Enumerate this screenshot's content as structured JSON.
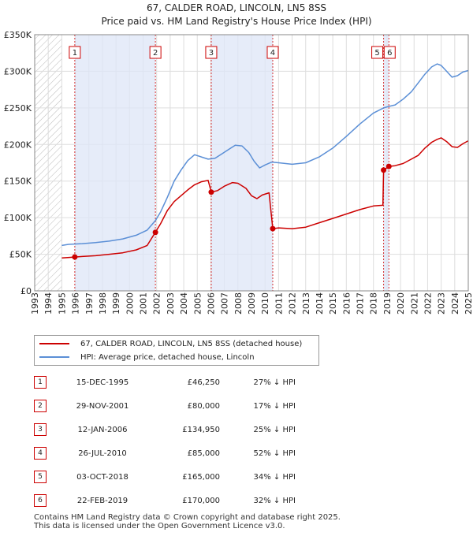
{
  "title_line1": "67, CALDER ROAD, LINCOLN, LN5 8SS",
  "title_line2": "Price paid vs. HM Land Registry's House Price Index (HPI)",
  "legend": {
    "property_label": "67, CALDER ROAD, LINCOLN, LN5 8SS (detached house)",
    "hpi_label": "HPI: Average price, detached house, Lincoln"
  },
  "colors": {
    "property": "#cc0000",
    "hpi": "#5b8fd6",
    "shade": "#dde6f7",
    "grid": "#dddddd",
    "hatch": "#bbbbbb"
  },
  "transactions": [
    {
      "num": "1",
      "date": "15-DEC-1995",
      "price": "£46,250",
      "hpi_diff": "27% ↓ HPI"
    },
    {
      "num": "2",
      "date": "29-NOV-2001",
      "price": "£80,000",
      "hpi_diff": "17% ↓ HPI"
    },
    {
      "num": "3",
      "date": "12-JAN-2006",
      "price": "£134,950",
      "hpi_diff": "25% ↓ HPI"
    },
    {
      "num": "4",
      "date": "26-JUL-2010",
      "price": "£85,000",
      "hpi_diff": "52% ↓ HPI"
    },
    {
      "num": "5",
      "date": "03-OCT-2018",
      "price": "£165,000",
      "hpi_diff": "34% ↓ HPI"
    },
    {
      "num": "6",
      "date": "22-FEB-2019",
      "price": "£170,000",
      "hpi_diff": "32% ↓ HPI"
    }
  ],
  "footer_line1": "Contains HM Land Registry data © Crown copyright and database right 2025.",
  "footer_line2": "This data is licensed under the Open Government Licence v3.0.",
  "chart_data": {
    "type": "line",
    "xlim": [
      1993,
      2025
    ],
    "ylim": [
      0,
      350000
    ],
    "x_ticks": [
      1993,
      1994,
      1995,
      1996,
      1997,
      1998,
      1999,
      2000,
      2001,
      2002,
      2003,
      2004,
      2005,
      2006,
      2007,
      2008,
      2009,
      2010,
      2011,
      2012,
      2013,
      2014,
      2015,
      2016,
      2017,
      2018,
      2019,
      2020,
      2021,
      2022,
      2023,
      2024,
      2025
    ],
    "y_ticks": [
      0,
      50000,
      100000,
      150000,
      200000,
      250000,
      300000,
      350000
    ],
    "y_tick_labels": [
      "£0",
      "£50K",
      "£100K",
      "£150K",
      "£200K",
      "£250K",
      "£300K",
      "£350K"
    ],
    "grid": true,
    "data_start": 1995.0,
    "shaded_periods": [
      [
        1995.96,
        2001.91
      ],
      [
        2006.03,
        2010.57
      ],
      [
        2018.75,
        2019.14
      ]
    ],
    "series": [
      {
        "name": "67, CALDER ROAD, LINCOLN, LN5 8SS (detached house)",
        "points": [
          [
            1995.0,
            45000
          ],
          [
            1995.96,
            46250
          ],
          [
            1996.5,
            47000
          ],
          [
            1997.5,
            48000
          ],
          [
            1998.5,
            50000
          ],
          [
            1999.5,
            52000
          ],
          [
            2000.5,
            56000
          ],
          [
            2001.3,
            62000
          ],
          [
            2001.91,
            80000
          ],
          [
            2002.3,
            92000
          ],
          [
            2002.8,
            110000
          ],
          [
            2003.3,
            122000
          ],
          [
            2003.8,
            130000
          ],
          [
            2004.3,
            138000
          ],
          [
            2004.8,
            145000
          ],
          [
            2005.3,
            149000
          ],
          [
            2005.8,
            151000
          ],
          [
            2006.03,
            134950
          ],
          [
            2006.5,
            137000
          ],
          [
            2007.0,
            143000
          ],
          [
            2007.6,
            148000
          ],
          [
            2008.0,
            147000
          ],
          [
            2008.6,
            140000
          ],
          [
            2009.0,
            130000
          ],
          [
            2009.4,
            126000
          ],
          [
            2009.8,
            131000
          ],
          [
            2010.3,
            134000
          ],
          [
            2010.57,
            85000
          ],
          [
            2011.0,
            86000
          ],
          [
            2012.0,
            85000
          ],
          [
            2013.0,
            87000
          ],
          [
            2014.0,
            93000
          ],
          [
            2015.0,
            99000
          ],
          [
            2016.0,
            105000
          ],
          [
            2017.0,
            111000
          ],
          [
            2018.0,
            116000
          ],
          [
            2018.7,
            117000
          ],
          [
            2018.75,
            165000
          ],
          [
            2019.14,
            170000
          ],
          [
            2019.6,
            171000
          ],
          [
            2020.2,
            174000
          ],
          [
            2020.8,
            180000
          ],
          [
            2021.3,
            185000
          ],
          [
            2021.8,
            195000
          ],
          [
            2022.3,
            203000
          ],
          [
            2022.7,
            207000
          ],
          [
            2023.0,
            209000
          ],
          [
            2023.4,
            204000
          ],
          [
            2023.8,
            197000
          ],
          [
            2024.2,
            196000
          ],
          [
            2024.6,
            201000
          ],
          [
            2025.0,
            205000
          ]
        ]
      },
      {
        "name": "HPI: Average price, detached house, Lincoln",
        "points": [
          [
            1995.0,
            62000
          ],
          [
            1995.5,
            63500
          ],
          [
            1996.5,
            64500
          ],
          [
            1997.5,
            66000
          ],
          [
            1998.5,
            68000
          ],
          [
            1999.5,
            71000
          ],
          [
            2000.5,
            76000
          ],
          [
            2001.3,
            83000
          ],
          [
            2001.91,
            96000
          ],
          [
            2002.3,
            108000
          ],
          [
            2002.8,
            128000
          ],
          [
            2003.3,
            150000
          ],
          [
            2003.8,
            165000
          ],
          [
            2004.3,
            178000
          ],
          [
            2004.8,
            186000
          ],
          [
            2005.3,
            183000
          ],
          [
            2005.8,
            180000
          ],
          [
            2006.3,
            181000
          ],
          [
            2006.8,
            187000
          ],
          [
            2007.3,
            193000
          ],
          [
            2007.8,
            199000
          ],
          [
            2008.3,
            198000
          ],
          [
            2008.8,
            189000
          ],
          [
            2009.2,
            177000
          ],
          [
            2009.6,
            168000
          ],
          [
            2010.0,
            172000
          ],
          [
            2010.5,
            176000
          ],
          [
            2011.0,
            175000
          ],
          [
            2012.0,
            173000
          ],
          [
            2013.0,
            175000
          ],
          [
            2014.0,
            183000
          ],
          [
            2015.0,
            195000
          ],
          [
            2016.0,
            211000
          ],
          [
            2017.0,
            228000
          ],
          [
            2018.0,
            243000
          ],
          [
            2018.75,
            250000
          ],
          [
            2019.14,
            252000
          ],
          [
            2019.6,
            254000
          ],
          [
            2020.2,
            262000
          ],
          [
            2020.8,
            272000
          ],
          [
            2021.3,
            284000
          ],
          [
            2021.8,
            296000
          ],
          [
            2022.3,
            306000
          ],
          [
            2022.7,
            310000
          ],
          [
            2023.0,
            308000
          ],
          [
            2023.4,
            300000
          ],
          [
            2023.8,
            292000
          ],
          [
            2024.2,
            294000
          ],
          [
            2024.6,
            299000
          ],
          [
            2025.0,
            301000
          ]
        ]
      }
    ],
    "markers": [
      {
        "label": "1",
        "x": 1995.96,
        "y": 46250
      },
      {
        "label": "2",
        "x": 2001.91,
        "y": 80000
      },
      {
        "label": "3",
        "x": 2006.03,
        "y": 134950
      },
      {
        "label": "4",
        "x": 2010.57,
        "y": 85000
      },
      {
        "label": "5",
        "x": 2018.75,
        "y": 165000
      },
      {
        "label": "6",
        "x": 2019.14,
        "y": 170000
      }
    ]
  }
}
